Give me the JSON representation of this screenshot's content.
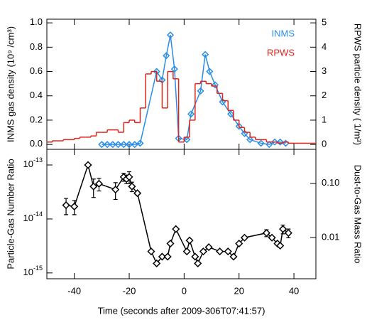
{
  "chart_data": [
    {
      "type": "line",
      "ylabel": "INMS gas density (10⁹ /cm³)",
      "y2label": "RPWS particle density ( 1/m³)",
      "xlim": [
        -50,
        48
      ],
      "xticks": [
        -40,
        -20,
        0,
        20,
        40
      ],
      "ylim": [
        -0.04,
        1.03
      ],
      "yticks": [
        {
          "value": 0,
          "label": "0.0"
        },
        0.2,
        0.4,
        0.6,
        0.8,
        {
          "value": 1,
          "label": "1.0"
        }
      ],
      "y2lim": [
        -0.2,
        5.15
      ],
      "y2ticks": [
        0,
        1,
        2,
        3,
        4,
        5
      ],
      "series": [
        {
          "name": "INMS",
          "color": "#2a8ee6",
          "marker": "diamond",
          "x": [
            -30,
            -28,
            -26,
            -24,
            -22,
            -20,
            -18,
            -16,
            -10,
            -8,
            -6.5,
            -5,
            -3.5,
            -2,
            1,
            2.5,
            6,
            7.7,
            9.3,
            11.3,
            14,
            17,
            20,
            22,
            24,
            28,
            31,
            33,
            35,
            37
          ],
          "values": [
            0,
            0,
            0,
            0,
            0,
            0,
            0,
            0.01,
            0.6,
            0.53,
            0.73,
            0.9,
            0.62,
            0.05,
            0.04,
            0.25,
            0.44,
            0.74,
            0.6,
            0.49,
            0.35,
            0.25,
            0.15,
            0.09,
            0.04,
            0.01,
            0.0,
            0.02,
            0.02,
            0.01
          ]
        },
        {
          "name": "RPWS",
          "color": "#e0241c",
          "style": "step",
          "axis": "y2",
          "bins": [
            -50,
            -48,
            -46,
            -44,
            -42,
            -40,
            -38,
            -36,
            -34,
            -32,
            -30,
            -28,
            -26,
            -24,
            -22,
            -20,
            -18,
            -16,
            -14,
            -12,
            -10,
            -8,
            -6,
            -4,
            -2,
            0,
            2,
            4,
            6,
            8,
            10,
            12,
            14,
            16,
            18,
            20,
            22,
            24,
            26,
            28,
            30,
            32,
            34,
            36,
            38,
            40,
            42,
            44,
            46,
            48
          ],
          "values": [
            0.1,
            0.15,
            0.15,
            0.2,
            0.2,
            0.25,
            0.3,
            0.3,
            0.35,
            0.5,
            0.5,
            0.6,
            0.6,
            0.5,
            0.9,
            1.0,
            0.9,
            1.5,
            2.9,
            3.0,
            2.6,
            1.5,
            3.0,
            2.7,
            0.1,
            0.3,
            1.0,
            2.5,
            2.6,
            2.5,
            2.4,
            2.1,
            1.8,
            1.4,
            1.0,
            0.7,
            0.5,
            0.3,
            0.2,
            0.2,
            0.1,
            0.1,
            0.05,
            0.1,
            0.05,
            0.05,
            0.05,
            0.05,
            0.05
          ]
        }
      ]
    },
    {
      "type": "scatter",
      "log": true,
      "color": "#000000",
      "marker": "diamond",
      "xlabel": "Time (seconds after 2009-306T07:41:57)",
      "ylabel": "Particle-Gas Number Ratio",
      "y2label": "Dust-to-Gas Mass Ratio",
      "xlim": [
        -50,
        48
      ],
      "xticks": [
        -40,
        -20,
        0,
        20,
        40
      ],
      "ylim": [
        7.8e-16,
        1.95e-13
      ],
      "yticks": [
        {
          "value": 1e-13,
          "label": "10",
          "exp": "-13"
        },
        {
          "value": 1e-14,
          "label": "10",
          "exp": "-14"
        },
        {
          "value": 1e-15,
          "label": "10",
          "exp": "-15"
        }
      ],
      "y2lim": [
        0.00172,
        0.429
      ],
      "y2ticks": [
        {
          "value": 0.1,
          "label": "0.10"
        },
        0.01
      ],
      "x": [
        -43,
        -40,
        -35,
        -33,
        -31,
        -25,
        -22,
        -21,
        -20,
        -19,
        -17,
        -12,
        -10,
        -8,
        -6,
        -5,
        -3,
        1,
        2,
        4,
        5,
        7,
        9,
        13,
        16,
        18,
        20,
        22,
        30,
        32,
        34,
        35,
        36,
        38
      ],
      "values": [
        1.8e-14,
        1.7e-14,
        1e-13,
        4e-14,
        4.5e-14,
        3.5e-14,
        6e-14,
        5.5e-14,
        6e-14,
        4e-14,
        3e-14,
        2.5e-15,
        1.5e-15,
        2e-15,
        2e-15,
        3.5e-15,
        6.5e-15,
        2.5e-15,
        4e-15,
        2e-15,
        1.5e-15,
        2.5e-15,
        3e-15,
        2.5e-15,
        2.5e-15,
        2e-15,
        3.5e-15,
        4.5e-15,
        5.5e-15,
        4.5e-15,
        3.5e-15,
        3.2e-15,
        6.5e-15,
        5.5e-15
      ],
      "errors": [
        6e-15,
        5e-15,
        null,
        1.5e-14,
        1.2e-14,
        1.2e-14,
        1e-14,
        1e-14,
        1.5e-14,
        8e-15,
        null,
        null,
        null,
        null,
        null,
        null,
        null,
        null,
        null,
        null,
        null,
        null,
        null,
        null,
        null,
        null,
        null,
        null,
        8e-16,
        null,
        null,
        null,
        1.2e-15,
        1e-15
      ]
    }
  ]
}
